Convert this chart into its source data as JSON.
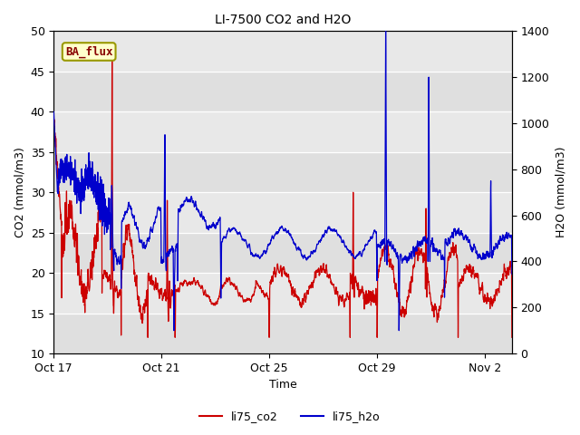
{
  "title": "LI-7500 CO2 and H2O",
  "xlabel": "Time",
  "ylabel_left": "CO2 (mmol/m3)",
  "ylabel_right": "H2O (mmol/m3)",
  "ylim_left": [
    10,
    50
  ],
  "ylim_right": [
    0,
    1400
  ],
  "legend_labels": [
    "li75_co2",
    "li75_h2o"
  ],
  "legend_colors": [
    "#cc0000",
    "#0000cc"
  ],
  "color_co2": "#cc0000",
  "color_h2o": "#0000cc",
  "background_color": "#e8e8e8",
  "box_label": "BA_flux",
  "box_facecolor": "#ffffcc",
  "box_edgecolor": "#999900",
  "box_textcolor": "#880000",
  "xtick_labels": [
    "Oct 17",
    "Oct 21",
    "Oct 25",
    "Oct 29",
    "Nov 2"
  ],
  "xtick_positions": [
    0,
    4,
    8,
    12,
    16
  ],
  "title_fontsize": 10,
  "axis_fontsize": 9,
  "tick_fontsize": 9,
  "linewidth": 0.9
}
